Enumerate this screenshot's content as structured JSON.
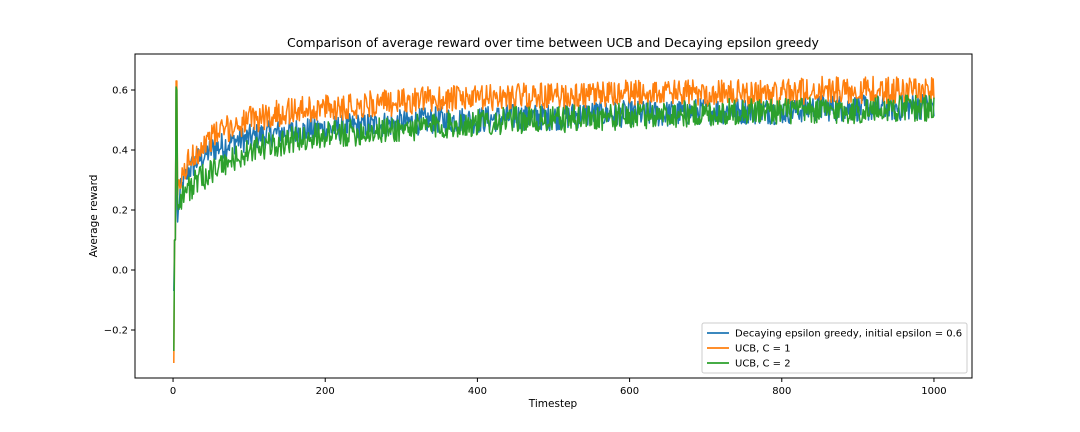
{
  "chart_data": {
    "type": "line",
    "title": "Comparison of average reward over time between UCB and Decaying epsilon greedy",
    "xlabel": "Timestep",
    "ylabel": "Average reward",
    "xlim": [
      -50,
      1050
    ],
    "ylim": [
      -0.36,
      0.72
    ],
    "xticks": [
      0,
      200,
      400,
      600,
      800,
      1000
    ],
    "yticks": [
      -0.2,
      0.0,
      0.2,
      0.4,
      0.6
    ],
    "xtick_labels": [
      "0",
      "200",
      "400",
      "600",
      "800",
      "1000"
    ],
    "ytick_labels": [
      "−0.2",
      "0.0",
      "0.2",
      "0.4",
      "0.6"
    ],
    "grid": false,
    "legend_position": "lower-right",
    "series": [
      {
        "name": "Decaying epsilon greedy, initial epsilon = 0.6",
        "color": "#1f77b4",
        "x": [
          1,
          2,
          3,
          4,
          5,
          6,
          8,
          10,
          15,
          20,
          30,
          40,
          50,
          60,
          80,
          100,
          120,
          150,
          200,
          250,
          300,
          350,
          400,
          450,
          500,
          550,
          600,
          650,
          700,
          750,
          800,
          850,
          900,
          950,
          1000
        ],
        "values": [
          -0.07,
          0.1,
          0.1,
          0.6,
          0.25,
          0.16,
          0.22,
          0.26,
          0.3,
          0.33,
          0.36,
          0.38,
          0.4,
          0.41,
          0.43,
          0.44,
          0.45,
          0.46,
          0.47,
          0.48,
          0.49,
          0.5,
          0.5,
          0.51,
          0.51,
          0.52,
          0.52,
          0.52,
          0.53,
          0.53,
          0.53,
          0.54,
          0.54,
          0.54,
          0.55
        ]
      },
      {
        "name": "UCB, C = 1",
        "color": "#ff7f0e",
        "x": [
          1,
          2,
          3,
          4,
          5,
          6,
          8,
          10,
          15,
          20,
          30,
          40,
          50,
          60,
          80,
          100,
          120,
          150,
          200,
          250,
          300,
          350,
          400,
          450,
          500,
          550,
          600,
          650,
          700,
          750,
          800,
          850,
          900,
          950,
          1000
        ],
        "values": [
          -0.31,
          0.1,
          0.1,
          0.63,
          0.63,
          0.25,
          0.27,
          0.29,
          0.33,
          0.36,
          0.39,
          0.42,
          0.44,
          0.46,
          0.48,
          0.5,
          0.51,
          0.53,
          0.54,
          0.55,
          0.56,
          0.57,
          0.57,
          0.58,
          0.58,
          0.58,
          0.59,
          0.59,
          0.59,
          0.59,
          0.59,
          0.6,
          0.6,
          0.6,
          0.6
        ]
      },
      {
        "name": "UCB, C = 2",
        "color": "#2ca02c",
        "x": [
          1,
          2,
          3,
          4,
          5,
          6,
          8,
          10,
          15,
          20,
          30,
          40,
          50,
          60,
          80,
          100,
          120,
          150,
          200,
          250,
          300,
          350,
          400,
          450,
          500,
          550,
          600,
          650,
          700,
          750,
          800,
          850,
          900,
          950,
          1000
        ],
        "values": [
          -0.27,
          0.1,
          0.1,
          0.61,
          0.6,
          0.22,
          0.23,
          0.24,
          0.26,
          0.27,
          0.29,
          0.31,
          0.33,
          0.34,
          0.37,
          0.39,
          0.41,
          0.43,
          0.45,
          0.46,
          0.47,
          0.48,
          0.49,
          0.5,
          0.5,
          0.51,
          0.51,
          0.52,
          0.52,
          0.53,
          0.53,
          0.53,
          0.53,
          0.54,
          0.54
        ]
      }
    ]
  }
}
